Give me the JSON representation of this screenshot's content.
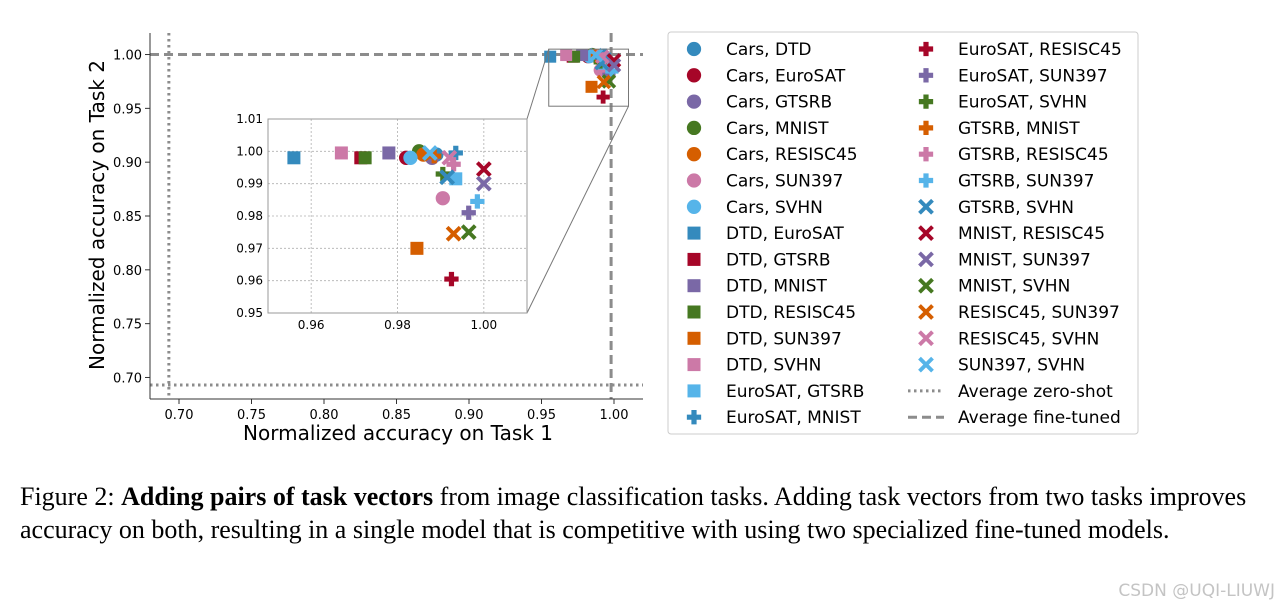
{
  "chart_data": {
    "type": "scatter",
    "xlabel": "Normalized accuracy on Task 1",
    "ylabel": "Normalized accuracy on Task 2",
    "xlim": [
      0.68,
      1.02
    ],
    "ylim": [
      0.68,
      1.02
    ],
    "xticks": [
      "0.70",
      "0.75",
      "0.80",
      "0.85",
      "0.90",
      "0.95",
      "1.00"
    ],
    "yticks": [
      "0.70",
      "0.75",
      "0.80",
      "0.85",
      "0.90",
      "0.95",
      "1.00"
    ],
    "reference_lines": [
      {
        "name": "Average zero-shot",
        "style": "dotted",
        "x": 0.693,
        "y": 0.693
      },
      {
        "name": "Average fine-tuned",
        "style": "dashed",
        "x": 0.998,
        "y": 1.0
      }
    ],
    "inset": {
      "xlim": [
        0.95,
        1.01
      ],
      "ylim": [
        0.95,
        1.01
      ],
      "xticks": [
        "0.96",
        "0.98",
        "1.00"
      ],
      "yticks": [
        "0.95",
        "0.96",
        "0.97",
        "0.98",
        "0.99",
        "1.00",
        "1.01"
      ],
      "grid": true,
      "zoom_box": {
        "x": [
          0.955,
          1.01
        ],
        "y": [
          0.952,
          1.005
        ]
      }
    },
    "legend_position": "right",
    "series": [
      {
        "name": "Cars, DTD",
        "marker": "circle",
        "color": "#348abd",
        "x": 0.989,
        "y": 0.999
      },
      {
        "name": "Cars, EuroSAT",
        "marker": "circle",
        "color": "#a60628",
        "x": 0.982,
        "y": 0.998
      },
      {
        "name": "Cars, GTSRB",
        "marker": "circle",
        "color": "#7a68a6",
        "x": 0.988,
        "y": 0.998
      },
      {
        "name": "Cars, MNIST",
        "marker": "circle",
        "color": "#467821",
        "x": 0.985,
        "y": 1.0
      },
      {
        "name": "Cars, RESISC45",
        "marker": "circle",
        "color": "#d55e00",
        "x": 0.986,
        "y": 0.999
      },
      {
        "name": "Cars, SUN397",
        "marker": "circle",
        "color": "#cc79a7",
        "x": 0.9905,
        "y": 0.9855
      },
      {
        "name": "Cars, SVHN",
        "marker": "circle",
        "color": "#56b4e9",
        "x": 0.983,
        "y": 0.998
      },
      {
        "name": "DTD, EuroSAT",
        "marker": "square",
        "color": "#348abd",
        "x": 0.956,
        "y": 0.998
      },
      {
        "name": "DTD, GTSRB",
        "marker": "square",
        "color": "#a60628",
        "x": 0.9715,
        "y": 0.998
      },
      {
        "name": "DTD, MNIST",
        "marker": "square",
        "color": "#7a68a6",
        "x": 0.978,
        "y": 0.9995
      },
      {
        "name": "DTD, RESISC45",
        "marker": "square",
        "color": "#467821",
        "x": 0.9725,
        "y": 0.998
      },
      {
        "name": "DTD, SUN397",
        "marker": "square",
        "color": "#d55e00",
        "x": 0.9845,
        "y": 0.97
      },
      {
        "name": "DTD, SVHN",
        "marker": "square",
        "color": "#cc79a7",
        "x": 0.967,
        "y": 0.9995
      },
      {
        "name": "EuroSAT, GTSRB",
        "marker": "square",
        "color": "#56b4e9",
        "x": 0.9935,
        "y": 0.9915
      },
      {
        "name": "EuroSAT, MNIST",
        "marker": "plus",
        "color": "#348abd",
        "x": 0.9935,
        "y": 0.9995
      },
      {
        "name": "EuroSAT, RESISC45",
        "marker": "plus",
        "color": "#a60628",
        "x": 0.9925,
        "y": 0.9605
      },
      {
        "name": "EuroSAT, SUN397",
        "marker": "plus",
        "color": "#7a68a6",
        "x": 0.9965,
        "y": 0.981
      },
      {
        "name": "EuroSAT, SVHN",
        "marker": "plus",
        "color": "#467821",
        "x": 0.9905,
        "y": 0.993
      },
      {
        "name": "GTSRB, MNIST",
        "marker": "plus",
        "color": "#d55e00",
        "x": 0.9885,
        "y": 0.9985
      },
      {
        "name": "GTSRB, RESISC45",
        "marker": "plus",
        "color": "#cc79a7",
        "x": 0.993,
        "y": 0.996
      },
      {
        "name": "GTSRB, SUN397",
        "marker": "plus",
        "color": "#56b4e9",
        "x": 0.9985,
        "y": 0.9845
      },
      {
        "name": "GTSRB, SVHN",
        "marker": "x",
        "color": "#348abd",
        "x": 0.9915,
        "y": 0.992
      },
      {
        "name": "MNIST, RESISC45",
        "marker": "x",
        "color": "#a60628",
        "x": 1.0,
        "y": 0.9945
      },
      {
        "name": "MNIST, SUN397",
        "marker": "x",
        "color": "#7a68a6",
        "x": 1.0,
        "y": 0.99
      },
      {
        "name": "MNIST, SVHN",
        "marker": "x",
        "color": "#467821",
        "x": 0.9965,
        "y": 0.975
      },
      {
        "name": "RESISC45, SUN397",
        "marker": "x",
        "color": "#d55e00",
        "x": 0.993,
        "y": 0.9745
      },
      {
        "name": "RESISC45, SVHN",
        "marker": "x",
        "color": "#cc79a7",
        "x": 0.992,
        "y": 0.998
      },
      {
        "name": "SUN397, SVHN",
        "marker": "x",
        "color": "#56b4e9",
        "x": 0.9875,
        "y": 0.9995
      }
    ]
  },
  "caption": {
    "label": "Figure 2: ",
    "bold": "Adding pairs of task vectors",
    "rest": " from image classification tasks. Adding task vectors from two tasks improves accuracy on both, resulting in a single model that is competitive with using two specialized fine-tuned models."
  },
  "watermark": "CSDN @UQI-LIUWJ"
}
